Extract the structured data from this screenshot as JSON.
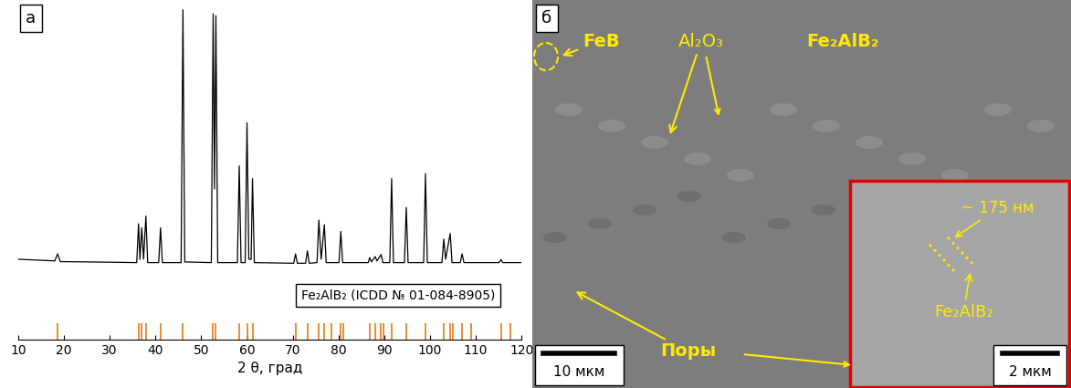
{
  "chart_data": {
    "type": "line",
    "xlabel": "2 θ, град",
    "xlim": [
      10,
      120
    ],
    "xticks": [
      10,
      20,
      30,
      40,
      50,
      60,
      70,
      80,
      90,
      100,
      110,
      120
    ],
    "ylim": [
      0,
      100
    ],
    "yticks": [],
    "tick_labels": "x",
    "legend": "lower right",
    "annotations": [
      "а"
    ],
    "series": [
      {
        "type": "line",
        "color": "#000000",
        "x": [
          10,
          18.0,
          18.6,
          19.2,
          35.9,
          36.3,
          36.6,
          37.0,
          37.4,
          37.9,
          38.3,
          40.7,
          41.1,
          41.5,
          45.6,
          46.0,
          46.4,
          52.2,
          52.6,
          52.9,
          53.2,
          53.6,
          57.9,
          58.3,
          58.7,
          59.6,
          60.0,
          60.4,
          60.9,
          61.2,
          61.6,
          70.2,
          70.6,
          71.0,
          72.8,
          73.2,
          73.6,
          75.3,
          75.7,
          76.2,
          76.9,
          77.3,
          80.1,
          80.5,
          80.9,
          86.5,
          86.8,
          87.2,
          88.0,
          88.4,
          89.3,
          89.7,
          91.2,
          91.6,
          92.0,
          94.4,
          94.8,
          95.2,
          98.6,
          99.0,
          99.4,
          102.6,
          103.0,
          103.4,
          104.4,
          104.8,
          106.6,
          107.0,
          107.4,
          115.1,
          115.5,
          115.9,
          120
        ],
        "values": [
          24,
          23.5,
          25.6,
          23.3,
          23,
          34.6,
          24,
          33.4,
          24,
          36.9,
          23,
          23,
          33.4,
          23,
          23,
          98.6,
          23.2,
          23,
          97.4,
          45,
          96.8,
          23,
          23,
          51.9,
          23,
          23,
          64.8,
          24,
          24,
          48.1,
          23,
          22.8,
          25.6,
          22.8,
          22.8,
          26.5,
          22.8,
          23,
          35.7,
          24,
          34.3,
          23,
          23,
          32.3,
          23,
          23,
          24.5,
          23.2,
          24.8,
          23.5,
          25.4,
          23,
          23,
          48.1,
          23,
          23,
          39.5,
          23,
          23,
          49.6,
          23,
          23,
          30.0,
          24,
          31.7,
          23,
          23,
          25.6,
          23,
          23,
          23.9,
          23,
          23
        ]
      },
      {
        "type": "sticks",
        "name": "Fe₂AlB₂ (ICDD № 01-084-8905)",
        "color": "#e07b1a",
        "x": [
          18.6,
          36.3,
          37.0,
          37.9,
          41.1,
          46.0,
          52.6,
          53.2,
          58.3,
          60.0,
          61.2,
          70.6,
          73.2,
          75.7,
          76.9,
          78.5,
          80.5,
          81.0,
          86.8,
          88.0,
          89.3,
          89.8,
          91.6,
          94.8,
          99.0,
          103.0,
          104.4,
          105.0,
          107.0,
          109.0,
          115.5,
          117.5
        ],
        "values": [
          5,
          5,
          5,
          5,
          5,
          5,
          5,
          5,
          5,
          5,
          5,
          5,
          5,
          5,
          5,
          5,
          5,
          5,
          5,
          5,
          5,
          5,
          5,
          5,
          5,
          5,
          5,
          5,
          5,
          5,
          5,
          5
        ]
      }
    ]
  },
  "micrograph": {
    "panel_label": "б",
    "labels": [
      "FeB",
      "Al₂O₃",
      "Fe₂AlB₂",
      "Поры"
    ],
    "scale_bar": "10 мкм",
    "inset": {
      "labels": [
        "~ 175 нм",
        "Fe₂AlB₂"
      ],
      "scale_bar": "2 мкм"
    }
  }
}
